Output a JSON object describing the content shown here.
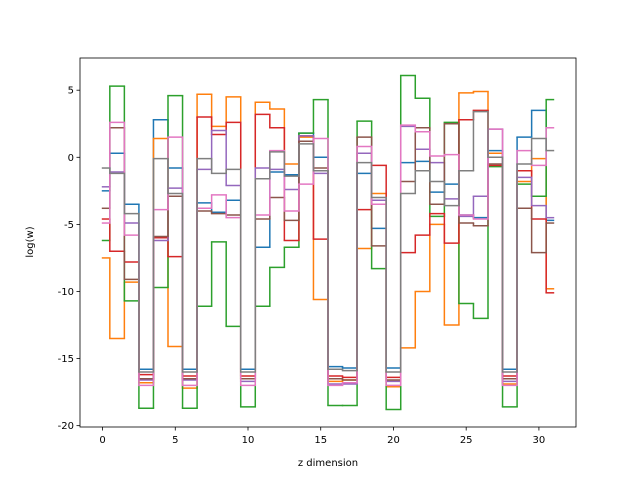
{
  "chart_data": {
    "type": "step",
    "x_label": "z dimension",
    "y_label": "log(w)",
    "x": [
      0,
      1,
      2,
      3,
      4,
      5,
      6,
      7,
      8,
      9,
      10,
      11,
      12,
      13,
      14,
      15,
      16,
      17,
      18,
      19,
      20,
      21,
      22,
      23,
      24,
      25,
      26,
      27,
      28,
      29,
      30,
      31
    ],
    "xlim": [
      -1.55,
      32.55
    ],
    "xticks": [
      0,
      5,
      10,
      15,
      20,
      25,
      30
    ],
    "ylim": [
      -20.1,
      7.4
    ],
    "yticks": [
      -20,
      -15,
      -10,
      -5,
      0,
      5
    ],
    "series": [
      {
        "color": "#1f77b4",
        "values": [
          -2.5,
          0.3,
          -3.5,
          -15.8,
          2.8,
          -0.8,
          -15.8,
          -3.4,
          -4.1,
          -3.2,
          -15.8,
          -6.7,
          -1.1,
          -1.3,
          1.8,
          0.0,
          -15.6,
          -15.7,
          -1.2,
          -5.3,
          -15.7,
          -0.4,
          -0.3,
          -2.6,
          -2.0,
          -4.3,
          -4.5,
          0.5,
          -15.8,
          1.5,
          3.5,
          -4.7
        ]
      },
      {
        "color": "#ff7f0e",
        "values": [
          -7.5,
          -13.5,
          -9.3,
          -16.8,
          1.4,
          -14.1,
          -17.2,
          4.7,
          2.3,
          4.5,
          -16.5,
          4.1,
          3.6,
          -0.5,
          1.5,
          -10.6,
          -16.7,
          -16.6,
          -6.8,
          -2.7,
          -17.1,
          -14.2,
          -10.0,
          -5.0,
          -12.5,
          4.8,
          4.9,
          0.3,
          -16.9,
          -1.8,
          -0.1,
          -9.8
        ]
      },
      {
        "color": "#2ca02c",
        "values": [
          -6.2,
          5.3,
          -10.7,
          -18.7,
          -9.7,
          4.6,
          -18.7,
          -11.1,
          -6.3,
          -12.6,
          -18.6,
          -11.1,
          -8.2,
          -6.7,
          1.8,
          4.3,
          -18.5,
          -18.5,
          2.7,
          -8.3,
          -18.8,
          6.1,
          4.4,
          -4.4,
          2.6,
          -10.9,
          -12.0,
          -0.7,
          -18.6,
          -2.0,
          -2.9,
          4.3
        ]
      },
      {
        "color": "#d62728",
        "values": [
          -4.6,
          -7.0,
          -7.8,
          -16.2,
          -6.0,
          -7.4,
          -16.3,
          3.0,
          1.7,
          2.6,
          -16.3,
          3.2,
          2.2,
          -6.2,
          1.6,
          -6.1,
          -16.3,
          -16.4,
          -3.9,
          -0.6,
          -16.4,
          -7.1,
          -5.8,
          -4.2,
          -6.4,
          2.8,
          3.5,
          -0.6,
          -16.3,
          -1.0,
          -4.6,
          -10.1
        ]
      },
      {
        "color": "#9467bd",
        "values": [
          -2.2,
          -1.1,
          -4.9,
          -16.6,
          -6.2,
          -2.3,
          -16.6,
          -0.9,
          2.0,
          -2.1,
          -16.7,
          -0.8,
          -0.9,
          -2.4,
          1.6,
          -1.2,
          -16.9,
          -16.9,
          0.3,
          -3.2,
          -16.7,
          2.3,
          0.6,
          -0.4,
          -3.1,
          -4.4,
          -2.9,
          2.1,
          -16.7,
          -1.5,
          -3.6,
          -4.5
        ]
      },
      {
        "color": "#8c564b",
        "values": [
          -3.8,
          2.2,
          -9.1,
          -16.5,
          -5.9,
          -2.9,
          -16.5,
          -4.0,
          -4.2,
          -4.3,
          -16.5,
          -4.6,
          -3.0,
          -4.7,
          1.2,
          -0.8,
          -16.5,
          -16.6,
          1.5,
          -6.6,
          -16.6,
          -1.8,
          2.2,
          -3.5,
          2.5,
          -4.9,
          -5.1,
          -0.5,
          -16.5,
          -3.8,
          -7.1,
          -4.9
        ]
      },
      {
        "color": "#e377c2",
        "values": [
          -4.9,
          2.6,
          -5.8,
          -17.0,
          -3.9,
          1.5,
          -17.0,
          -3.8,
          -2.8,
          -4.5,
          -17.0,
          -4.3,
          0.5,
          -4.0,
          -2.0,
          1.4,
          -17.0,
          -16.8,
          0.8,
          -3.5,
          -17.0,
          2.4,
          1.9,
          0.1,
          0.2,
          -4.3,
          -4.6,
          2.1,
          -17.0,
          0.5,
          -0.6,
          2.2
        ]
      },
      {
        "color": "#7f7f7f",
        "values": [
          -0.8,
          -1.2,
          -4.2,
          -16.0,
          -0.1,
          -2.7,
          -16.0,
          -0.1,
          -1.2,
          -0.9,
          -16.0,
          -1.6,
          0.4,
          -1.4,
          1.0,
          -1.0,
          -15.8,
          -15.9,
          -0.4,
          -3.0,
          -16.0,
          -2.7,
          -1.0,
          -1.8,
          -3.6,
          -1.0,
          3.4,
          0.0,
          -16.0,
          -0.5,
          1.4,
          0.5
        ]
      }
    ]
  }
}
